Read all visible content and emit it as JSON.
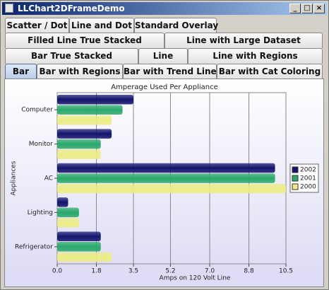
{
  "window": {
    "title": "LLChart2DFrameDemo"
  },
  "tabs": {
    "rows": [
      [
        "Scatter / Dot",
        "Line and Dot",
        "Standard Overlay"
      ],
      [
        "Filled Line True Stacked",
        "Line with Large Dataset"
      ],
      [
        "Bar True Stacked",
        "Line",
        "Line with Regions"
      ],
      [
        "Bar",
        "Bar with Regions",
        "Bar with Trend Line",
        "Bar with Cat Coloring"
      ]
    ]
  },
  "chart_data": {
    "type": "bar",
    "orientation": "horizontal",
    "title": "Amperage Used Per Appliance",
    "x_label": "Amps on 120 Volt Line",
    "y_label": "Appliances",
    "categories": [
      "Computer",
      "Monitor",
      "AC",
      "Lighting",
      "Refrigerator"
    ],
    "series": [
      {
        "name": "2002",
        "color": "#14146e",
        "values": [
          3.5,
          2.5,
          10.0,
          0.5,
          2.0
        ]
      },
      {
        "name": "2001",
        "color": "#2aa86a",
        "values": [
          3.0,
          2.0,
          10.0,
          1.0,
          2.0
        ]
      },
      {
        "name": "2000",
        "color": "#ecec86",
        "values": [
          2.5,
          2.0,
          10.5,
          1.0,
          2.5
        ]
      }
    ],
    "xlim": [
      0,
      10.5
    ],
    "xticks": [
      {
        "value": 0,
        "label": "0.0"
      },
      1.8,
      3.5,
      5.2,
      {
        "value": 7,
        "label": "7.0"
      },
      8.8,
      10.5
    ],
    "grid": true,
    "legend": "right"
  }
}
